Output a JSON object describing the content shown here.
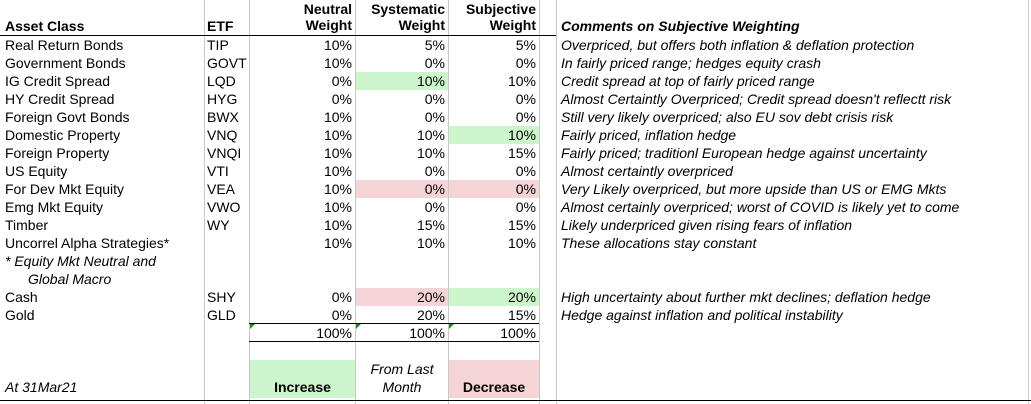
{
  "headers": {
    "asset_class": "Asset Class",
    "etf": "ETF",
    "neutral": [
      "Neutral",
      "Weight"
    ],
    "systematic": [
      "Systematic",
      "Weight"
    ],
    "subjective": [
      "Subjective",
      "Weight"
    ],
    "comments": "Comments on Subjective Weighting"
  },
  "rows": [
    {
      "asset": "Real Return Bonds",
      "etf": "TIP",
      "neutral": "10%",
      "systematic": "5%",
      "subjective": "5%",
      "comment": "Overpriced, but offers both inflation & deflation protection",
      "sys_fill": "",
      "subj_fill": ""
    },
    {
      "asset": "Government Bonds",
      "etf": "GOVT",
      "neutral": "10%",
      "systematic": "0%",
      "subjective": "0%",
      "comment": "In fairly priced range; hedges equity crash",
      "sys_fill": "",
      "subj_fill": ""
    },
    {
      "asset": "IG Credit Spread",
      "etf": "LQD",
      "neutral": "0%",
      "systematic": "10%",
      "subjective": "10%",
      "comment": "Credit spread at top of fairly priced range",
      "sys_fill": "#ccf5cc",
      "subj_fill": ""
    },
    {
      "asset": "HY Credit Spread",
      "etf": "HYG",
      "neutral": "0%",
      "systematic": "0%",
      "subjective": "0%",
      "comment": "Almost Certaintly Overpriced; Credit spread doesn't reflectt risk",
      "sys_fill": "",
      "subj_fill": ""
    },
    {
      "asset": "Foreign Govt Bonds",
      "etf": "BWX",
      "neutral": "10%",
      "systematic": "0%",
      "subjective": "0%",
      "comment": "Still very likely overpriced; also EU sov debt crisis risk",
      "sys_fill": "",
      "subj_fill": ""
    },
    {
      "asset": "Domestic Property",
      "etf": "VNQ",
      "neutral": "10%",
      "systematic": "10%",
      "subjective": "10%",
      "comment": "Fairly priced, inflation hedge",
      "sys_fill": "",
      "subj_fill": "#ccf5cc"
    },
    {
      "asset": "Foreign Property",
      "etf": "VNQI",
      "neutral": "10%",
      "systematic": "10%",
      "subjective": "15%",
      "comment": "Fairly priced; traditionl European hedge against uncertainty",
      "sys_fill": "",
      "subj_fill": ""
    },
    {
      "asset": "US Equity",
      "etf": "VTI",
      "neutral": "10%",
      "systematic": "0%",
      "subjective": "0%",
      "comment": "Almost certaintly overpriced",
      "sys_fill": "",
      "subj_fill": ""
    },
    {
      "asset": "For Dev Mkt Equity",
      "etf": "VEA",
      "neutral": "10%",
      "systematic": "0%",
      "subjective": "0%",
      "comment": "Very Likely overpriced, but more upside than US or EMG Mkts",
      "sys_fill": "#f4d4d4",
      "subj_fill": "#f4d4d4"
    },
    {
      "asset": "Emg Mkt Equity",
      "etf": "VWO",
      "neutral": "10%",
      "systematic": "0%",
      "subjective": "0%",
      "comment": "Almost certainly overpriced; worst of COVID is likely yet to come",
      "sys_fill": "",
      "subj_fill": ""
    },
    {
      "asset": "Timber",
      "etf": "WY",
      "neutral": "10%",
      "systematic": "15%",
      "subjective": "15%",
      "comment": "Likely underpriced given rising fears of inflation",
      "sys_fill": "",
      "subj_fill": ""
    },
    {
      "asset": "Uncorrel Alpha Strategies*",
      "etf": "",
      "neutral": "10%",
      "systematic": "10%",
      "subjective": "10%",
      "comment": "These allocations stay constant",
      "sys_fill": "",
      "subj_fill": ""
    },
    {
      "asset": " * Equity Mkt Neutral and",
      "etf": "",
      "neutral": "",
      "systematic": "",
      "subjective": "",
      "comment": "",
      "sys_fill": "",
      "subj_fill": "",
      "italic": true
    },
    {
      "asset": "Global Macro",
      "etf": "",
      "neutral": "",
      "systematic": "",
      "subjective": "",
      "comment": "",
      "sys_fill": "",
      "subj_fill": "",
      "italic": true,
      "indent": true
    },
    {
      "asset": "Cash",
      "etf": "SHY",
      "neutral": "0%",
      "systematic": "20%",
      "subjective": "20%",
      "comment": "High uncertainty about further mkt declines; deflation hedge",
      "sys_fill": "#f4d4d4",
      "subj_fill": "#ccf5cc"
    },
    {
      "asset": "Gold",
      "etf": "GLD",
      "neutral": "0%",
      "systematic": "20%",
      "subjective": "15%",
      "comment": "Hedge against inflation and political instability",
      "sys_fill": "",
      "subj_fill": ""
    }
  ],
  "totals": {
    "neutral": "100%",
    "systematic": "100%",
    "subjective": "100%"
  },
  "legend": {
    "increase": "Increase",
    "from_last_month": [
      "From Last",
      "Month"
    ],
    "decrease": "Decrease",
    "increase_color": "#ccf5cc",
    "decrease_color": "#f4d4d4"
  },
  "date_label": "At 31Mar21"
}
